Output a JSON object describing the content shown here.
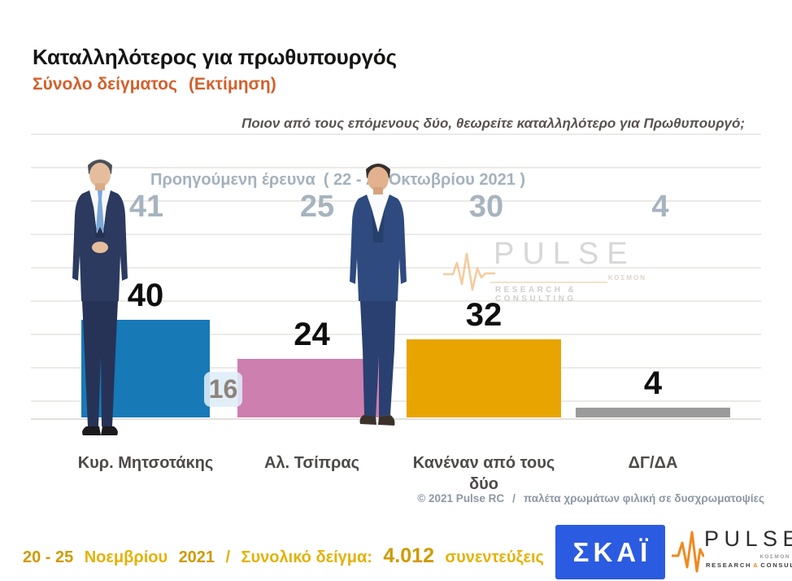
{
  "header": {
    "title": "Καταλληλότερος για πρωθυπουργός",
    "subtitle": "Σύνολο δείγματος",
    "subtitle_note": "(Εκτίμηση)",
    "question": "Ποιον από τους επόμενους δύο, θεωρείτε καταλληλότερο για Πρωθυπουργό;"
  },
  "previous_survey": {
    "label": "Προηγούμενη έρευνα",
    "period": "( 22 - 25 Οκτωβρίου 2021 )"
  },
  "chart_data": {
    "type": "bar",
    "categories": [
      "Κυρ. Μητσοτάκης",
      "Αλ. Τσίπρας",
      "Κανέναν από τους δύο",
      "ΔΓ/ΔΑ"
    ],
    "series": [
      {
        "name": "current",
        "values": [
          40,
          24,
          32,
          4
        ]
      },
      {
        "name": "previous",
        "values": [
          41,
          25,
          30,
          4
        ]
      }
    ],
    "bar_colors": [
      "#1879B7",
      "#CD7FB0",
      "#E8A502",
      "#9B9B9B"
    ],
    "stray_label": "16",
    "ylim": [
      0,
      45
    ],
    "grid": true,
    "value_label_color": "#0E0E0E",
    "previous_value_color": "#A6B4BF",
    "title": "Καταλληλότερος για πρωθυπουργός",
    "xlabel": "",
    "ylabel": ""
  },
  "watermark": {
    "brand": "PULSE",
    "small_text": "ΚΟΣΜΟΝ",
    "tagline": "RESEARCH & CONSULTING"
  },
  "copyright": {
    "owner": "© 2021 Pulse RC",
    "separator": "/",
    "note": "παλέτα χρωμάτων φιλική σε δυσχρωματοψίες"
  },
  "footer": {
    "date_prefix": "20 - 25",
    "month": "Νοεμβρίου",
    "year": "2021",
    "separator": "/",
    "sample_label": "Συνολικό δείγμα:",
    "sample_value": "4.012",
    "sample_suffix": "συνεντεύξεις",
    "skai_logo_text": "ΣΚΑΪ",
    "pulse_logo": {
      "brand": "PULSE",
      "small_text": "ΚΟΣΜΟΝ",
      "tagline_research": "RESEARCH",
      "tagline_amp": "&",
      "tagline_consulting": "CONSULTING"
    }
  },
  "colors": {
    "subtitle_orange": "#D2602B",
    "gold_dark": "#CF9A00",
    "gold_light": "#E3B206",
    "skai_blue": "#2B5BE0",
    "pulse_orange": "#EE8A1F"
  }
}
